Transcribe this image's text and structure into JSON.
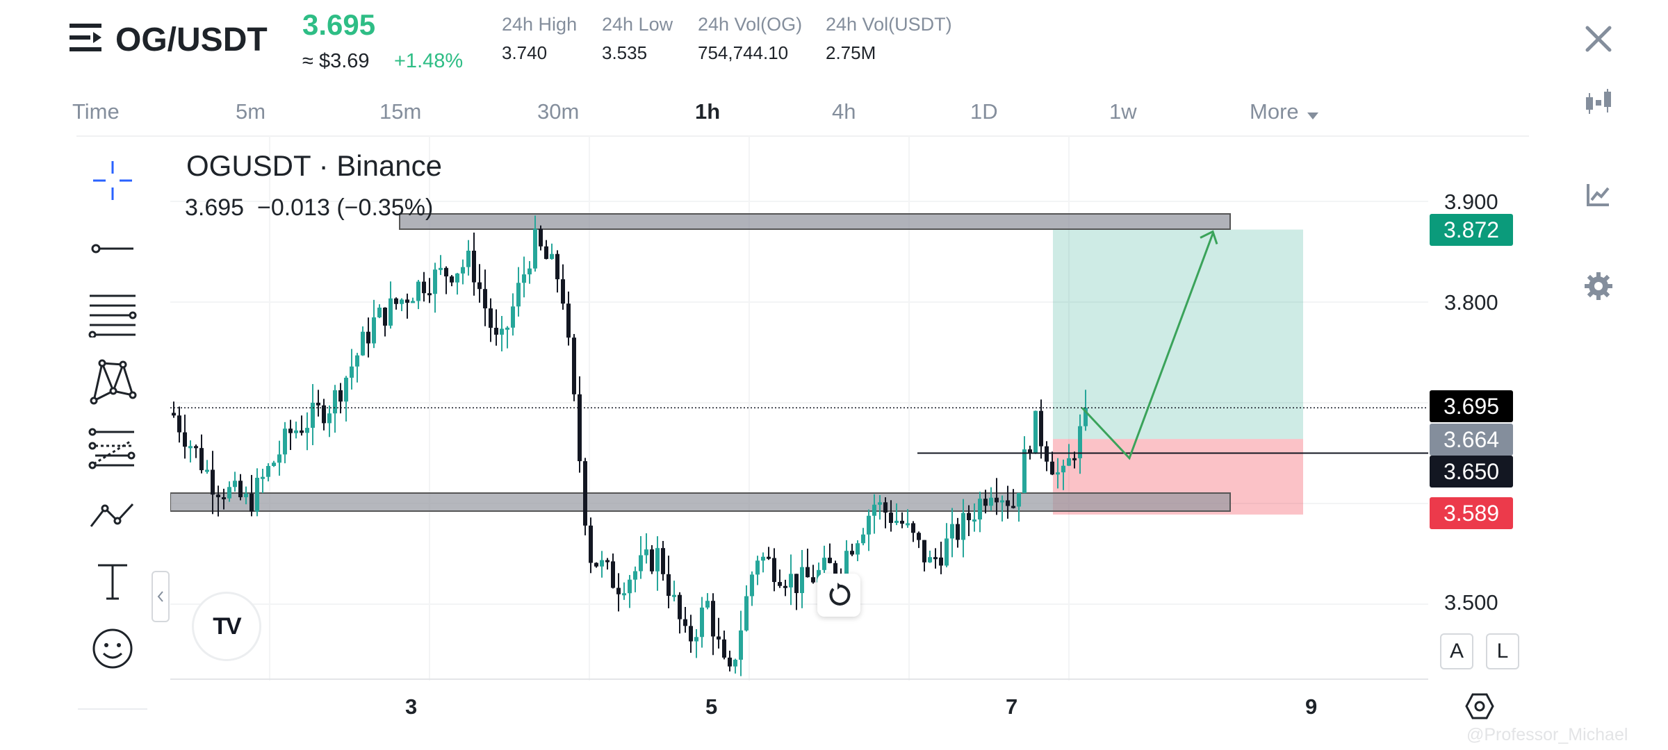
{
  "header": {
    "pair": "OG/USDT",
    "last_price": "3.695",
    "usd_price": "≈ $3.69",
    "change": "+1.48%",
    "stats": [
      {
        "label": "24h High",
        "value": "3.740"
      },
      {
        "label": "24h Low",
        "value": "3.535"
      },
      {
        "label": "24h Vol(OG)",
        "value": "754,744.10"
      },
      {
        "label": "24h Vol(USDT)",
        "value": "2.75M"
      }
    ]
  },
  "timeframes": [
    "Time",
    "5m",
    "15m",
    "30m",
    "1h",
    "4h",
    "1D",
    "1w"
  ],
  "active_timeframe": "1h",
  "more_label": "More",
  "chart": {
    "symbol_title": "OGUSDT · Binance",
    "ohlc_line": "3.695  −0.013 (−0.35%)",
    "y_axis": [
      "3.900",
      "3.800",
      "3.500"
    ],
    "x_axis": [
      "3",
      "5",
      "7",
      "9"
    ],
    "price_tags": [
      {
        "value": "3.872",
        "color": "#0b9b7b"
      },
      {
        "value": "3.695",
        "color": "#000000"
      },
      {
        "value": "3.664",
        "color": "#848e9c"
      },
      {
        "value": "3.650",
        "color": "#131722"
      },
      {
        "value": "3.589",
        "color": "#ec3a4b"
      }
    ],
    "scale_buttons": [
      "A",
      "L"
    ],
    "logo": "TV"
  },
  "watermark": "@Professor_Michael",
  "icons": [
    "menu-icon",
    "close-icon",
    "candles-icon",
    "chart-line-icon",
    "settings-icon",
    "crosshair-icon",
    "trendline-icon",
    "fib-icon",
    "pattern-icon",
    "projection-icon",
    "path-icon",
    "text-icon",
    "emoji-icon",
    "reset-icon",
    "hexagon-settings-icon"
  ]
}
